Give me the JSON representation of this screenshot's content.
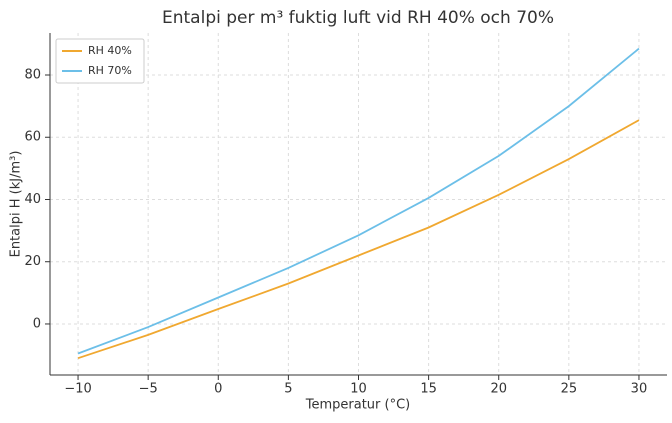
{
  "chart_data": {
    "type": "line",
    "title": "Entalpi per m³ fuktig luft vid RH 40% och 70%",
    "xlabel": "Temperatur (°C)",
    "ylabel": "Entalpi H (kJ/m³)",
    "x": [
      -10,
      -5,
      0,
      5,
      10,
      15,
      20,
      25,
      30
    ],
    "series": [
      {
        "name": "RH 40%",
        "color": "#f0a830",
        "values": [
          -11,
          -3.5,
          4.8,
          13,
          22,
          31,
          41.5,
          53,
          65.5
        ]
      },
      {
        "name": "RH 70%",
        "color": "#6cbfe8",
        "values": [
          -9.5,
          -1,
          8.5,
          18,
          28.5,
          40.5,
          54,
          70,
          88.5
        ]
      }
    ],
    "xlim": [
      -12,
      32
    ],
    "ylim": [
      -16.4,
      93.5
    ],
    "xticks": [
      {
        "value": -10,
        "label": "−10"
      },
      {
        "value": -5,
        "label": "−5"
      },
      0,
      5,
      10,
      15,
      20,
      25,
      30
    ],
    "yticks": [
      0,
      20,
      40,
      60,
      80
    ],
    "grid": true,
    "legend": "upper-left"
  }
}
